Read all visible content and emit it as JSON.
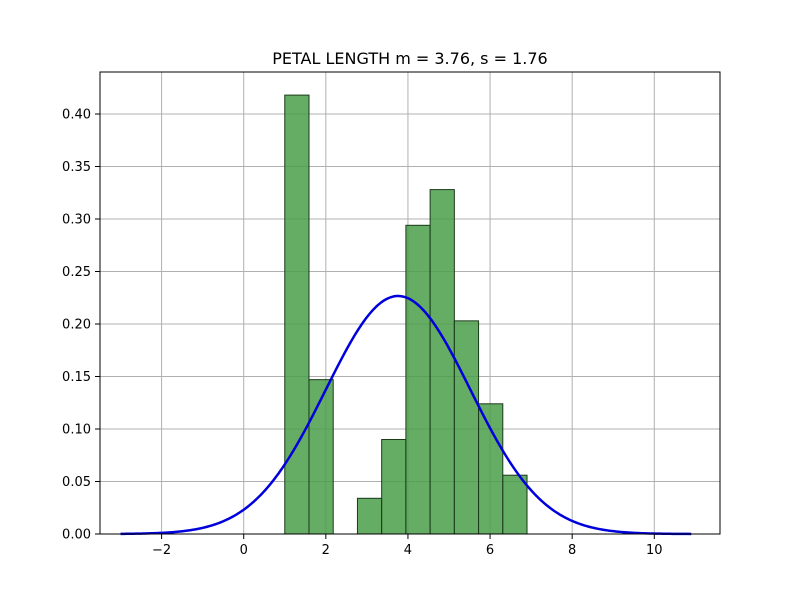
{
  "chart_data": {
    "type": "bar",
    "title": "PETAL LENGTH  m = 3.76,  s = 1.76",
    "xlabel": "",
    "ylabel": "",
    "xlim": [
      -3.5,
      11.6
    ],
    "ylim": [
      0,
      0.44
    ],
    "xticks": [
      -2,
      0,
      2,
      4,
      6,
      8,
      10
    ],
    "xtick_labels": [
      "−2",
      "0",
      "2",
      "4",
      "6",
      "8",
      "10"
    ],
    "yticks": [
      0.0,
      0.05,
      0.1,
      0.15,
      0.2,
      0.25,
      0.3,
      0.35,
      0.4
    ],
    "ytick_labels": [
      "0.00",
      "0.05",
      "0.10",
      "0.15",
      "0.20",
      "0.25",
      "0.30",
      "0.35",
      "0.40"
    ],
    "grid": true,
    "histogram": {
      "bin_edges": [
        1.0,
        1.59,
        2.18,
        2.77,
        3.36,
        3.95,
        4.54,
        5.13,
        5.72,
        6.31,
        6.9
      ],
      "density": [
        0.418,
        0.147,
        0.0,
        0.034,
        0.09,
        0.294,
        0.328,
        0.203,
        0.124,
        0.056
      ],
      "color": "#4a9e4a",
      "edgecolor": "#1a3a1a"
    },
    "normal_curve": {
      "mean": 3.76,
      "std": 1.76,
      "x_range": [
        -3.0,
        10.9
      ],
      "color": "#0000dd"
    }
  }
}
